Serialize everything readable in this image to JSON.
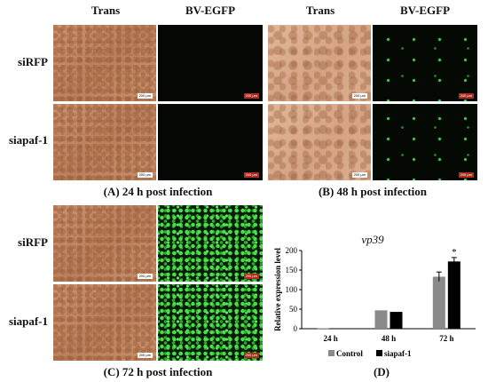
{
  "panels": {
    "A": {
      "caption": "(A)  24 h post infection",
      "col_headers": [
        "Trans",
        "BV-EGFP"
      ],
      "row_headers": [
        "siRFP",
        "siapaf-1"
      ],
      "scale_bar": "200 μm"
    },
    "B": {
      "caption": "(B)   48 h post infection",
      "col_headers": [
        "Trans",
        "BV-EGFP"
      ],
      "scale_bar": "200 μm"
    },
    "C": {
      "caption": "(C)   72 h post infection",
      "row_headers": [
        "siRFP",
        "siapaf-1"
      ],
      "scale_bar": "200 μm"
    },
    "D": {
      "caption": "(D)"
    }
  },
  "chart_data": {
    "type": "bar",
    "title": "vp39",
    "ylabel": "Relative expression level",
    "xlabel": "",
    "ylim": [
      0,
      200
    ],
    "yticks": [
      0,
      50,
      100,
      150,
      200
    ],
    "categories": [
      "24 h",
      "48 h",
      "72 h"
    ],
    "series": [
      {
        "name": "Control",
        "color": "#8a8a8a",
        "values": [
          1,
          47,
          133
        ],
        "errors": [
          0,
          0,
          12
        ]
      },
      {
        "name": "siapaf-1",
        "color": "#000000",
        "values": [
          1,
          43,
          172
        ],
        "errors": [
          0,
          0,
          10
        ]
      }
    ],
    "annotations": [
      {
        "category": "72 h",
        "text": "*"
      }
    ],
    "legend": "bottom"
  }
}
